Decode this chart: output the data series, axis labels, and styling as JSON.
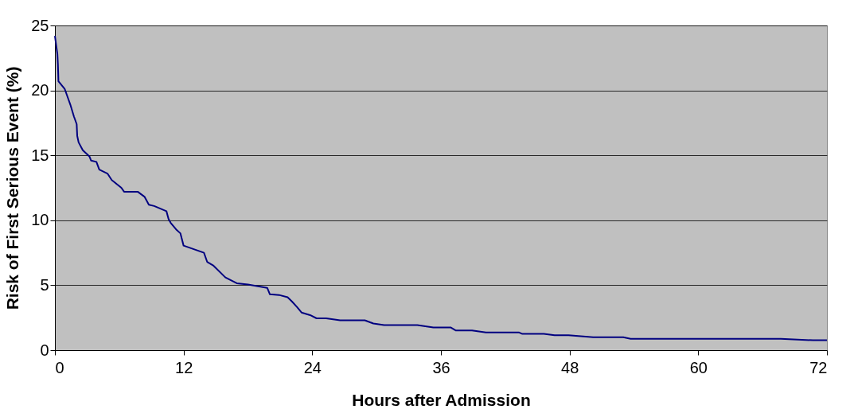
{
  "chart_data": {
    "type": "line",
    "xlabel": "Hours after Admission",
    "ylabel": "Risk of First Serious Event (%)",
    "xlim": [
      0,
      72
    ],
    "xticks": [
      0,
      12,
      24,
      36,
      48,
      60,
      72
    ],
    "ylim": [
      0,
      25
    ],
    "yticks": [
      0,
      5,
      10,
      15,
      20,
      25
    ],
    "grid": "y",
    "marker": "none",
    "line_style": "solid",
    "series": [
      {
        "color": "#000080",
        "x": [
          0,
          0.23,
          0.28,
          0.33,
          0.92,
          1.18,
          1.44,
          1.77,
          2.03,
          2.08,
          2.21,
          2.6,
          3.23,
          3.37,
          3.87,
          4.14,
          4.9,
          5.3,
          6.2,
          6.45,
          7.72,
          8.37,
          8.76,
          9.26,
          10.4,
          10.6,
          10.8,
          11.3,
          11.7,
          12.0,
          13.9,
          14.2,
          14.8,
          15.9,
          16.96,
          18.0,
          19.8,
          20.05,
          20.9,
          21.7,
          22.1,
          22.6,
          23.0,
          23.8,
          24.4,
          25.3,
          26.6,
          28.9,
          29.7,
          30.7,
          33.8,
          35.3,
          36.9,
          37.4,
          38.9,
          40.2,
          43.3,
          43.6,
          45.6,
          46.6,
          47.9,
          50.2,
          53.0,
          53.7,
          67.7,
          70.7,
          72
        ],
        "values": [
          24.2,
          22.8,
          22.0,
          20.7,
          20.1,
          19.5,
          18.9,
          18.0,
          17.4,
          16.5,
          16.0,
          15.4,
          14.9,
          14.6,
          14.5,
          13.9,
          13.6,
          13.1,
          12.5,
          12.2,
          12.2,
          11.8,
          11.2,
          11.1,
          10.7,
          10.1,
          9.8,
          9.3,
          9.0,
          8.05,
          7.5,
          6.8,
          6.5,
          5.6,
          5.15,
          5.05,
          4.8,
          4.3,
          4.25,
          4.07,
          3.75,
          3.3,
          2.9,
          2.7,
          2.45,
          2.45,
          2.3,
          2.3,
          2.05,
          1.93,
          1.93,
          1.75,
          1.75,
          1.51,
          1.51,
          1.36,
          1.36,
          1.25,
          1.25,
          1.15,
          1.15,
          0.99,
          0.99,
          0.87,
          0.87,
          0.76,
          0.76
        ]
      }
    ]
  }
}
